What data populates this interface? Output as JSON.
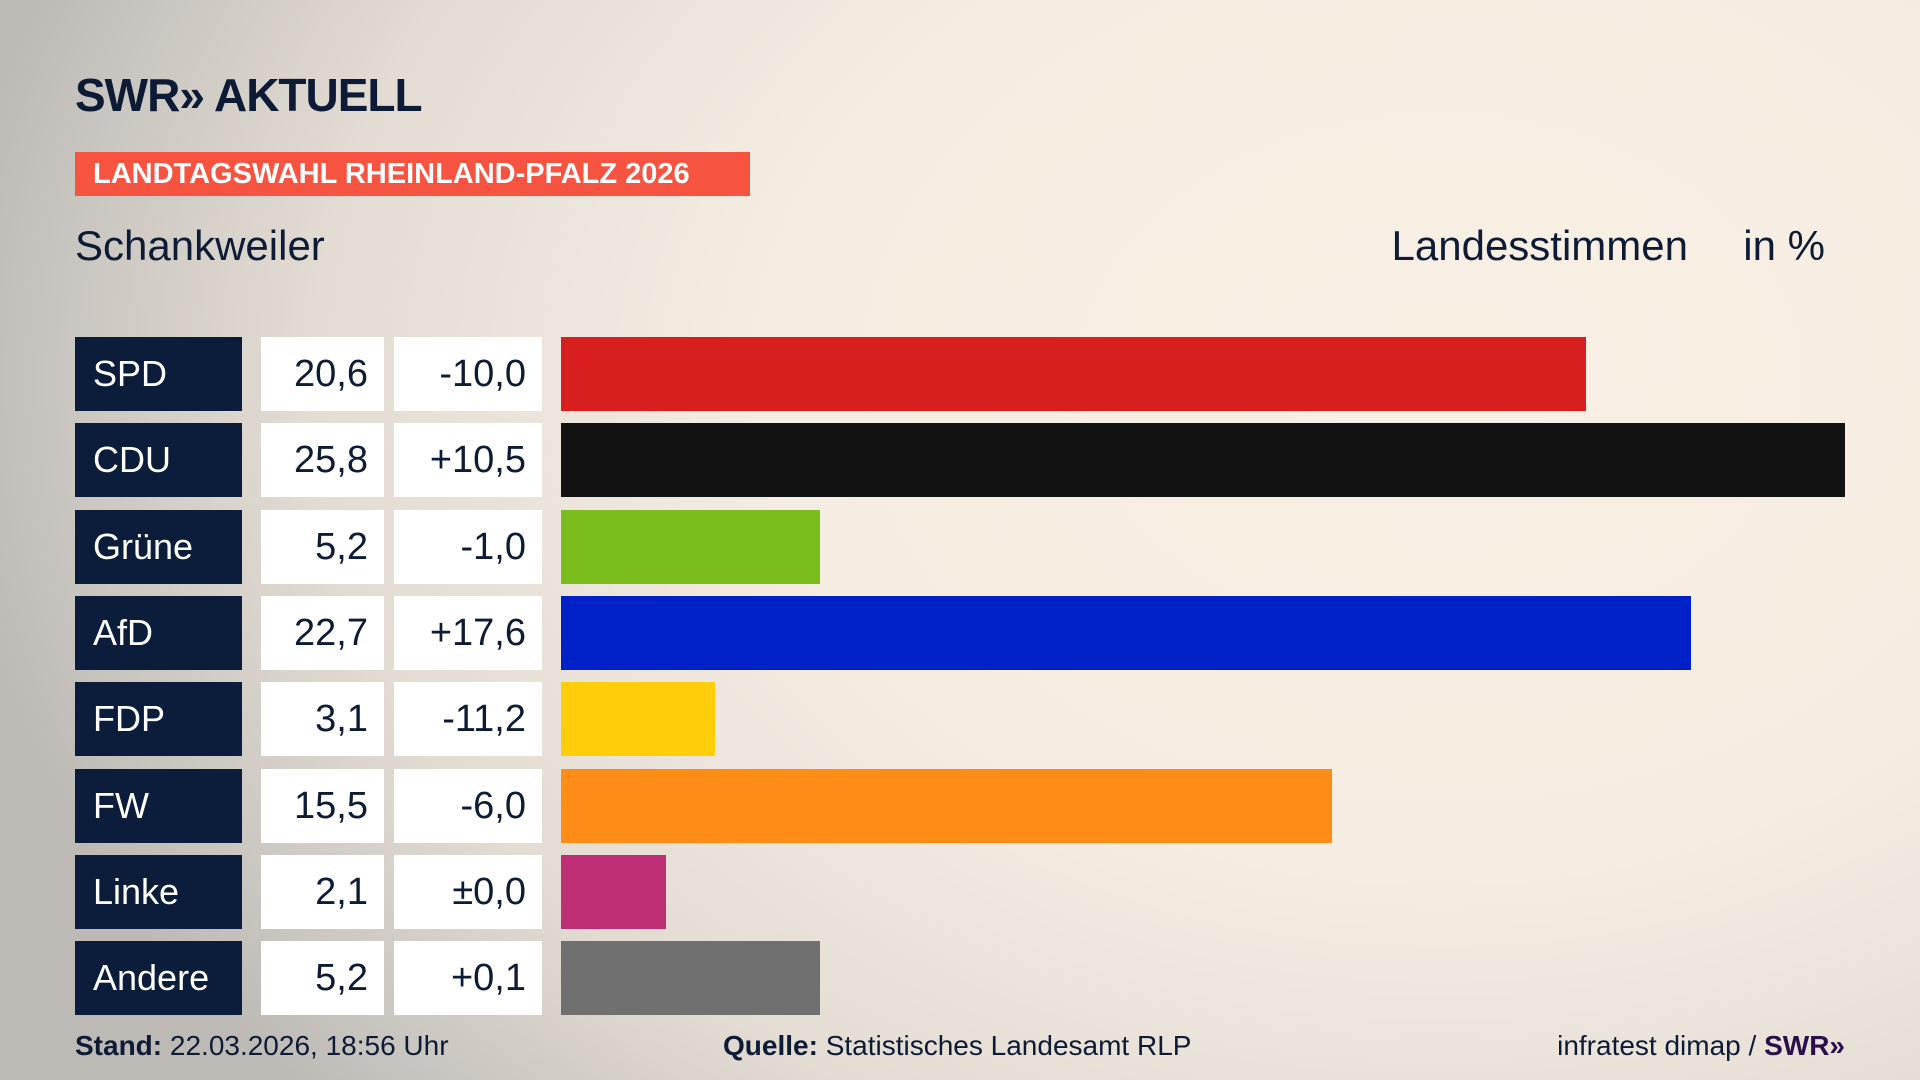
{
  "logo": "SWR» AKTUELL",
  "banner": "LANDTAGSWAHL RHEINLAND-PFALZ 2026",
  "region": "Schankweiler",
  "header": {
    "measure": "Landesstimmen",
    "unit": "in %"
  },
  "chart_data": {
    "type": "bar",
    "orientation": "horizontal",
    "categories": [
      "SPD",
      "CDU",
      "Grüne",
      "AfD",
      "FDP",
      "FW",
      "Linke",
      "Andere"
    ],
    "values": [
      20.6,
      25.8,
      5.2,
      22.7,
      3.1,
      15.5,
      2.1,
      5.2
    ],
    "value_labels": [
      "20,6",
      "25,8",
      "5,2",
      "22,7",
      "3,1",
      "15,5",
      "2,1",
      "5,2"
    ],
    "diff_labels": [
      "-10,0",
      "+10,5",
      "-1,0",
      "+17,6",
      "-11,2",
      "-6,0",
      "±0,0",
      "+0,1"
    ],
    "colors": [
      "#d71f1f",
      "#121212",
      "#7abd1c",
      "#0021c8",
      "#ffcd0a",
      "#ff8c17",
      "#be2f75",
      "#707070"
    ]
  },
  "footer": {
    "stand_label": "Stand:",
    "stand": "22.03.2026, 18:56 Uhr",
    "source_label": "Quelle:",
    "source": "Statistisches Landesamt RLP",
    "credit": "infratest dimap /",
    "credit_logo": "SWR»"
  }
}
